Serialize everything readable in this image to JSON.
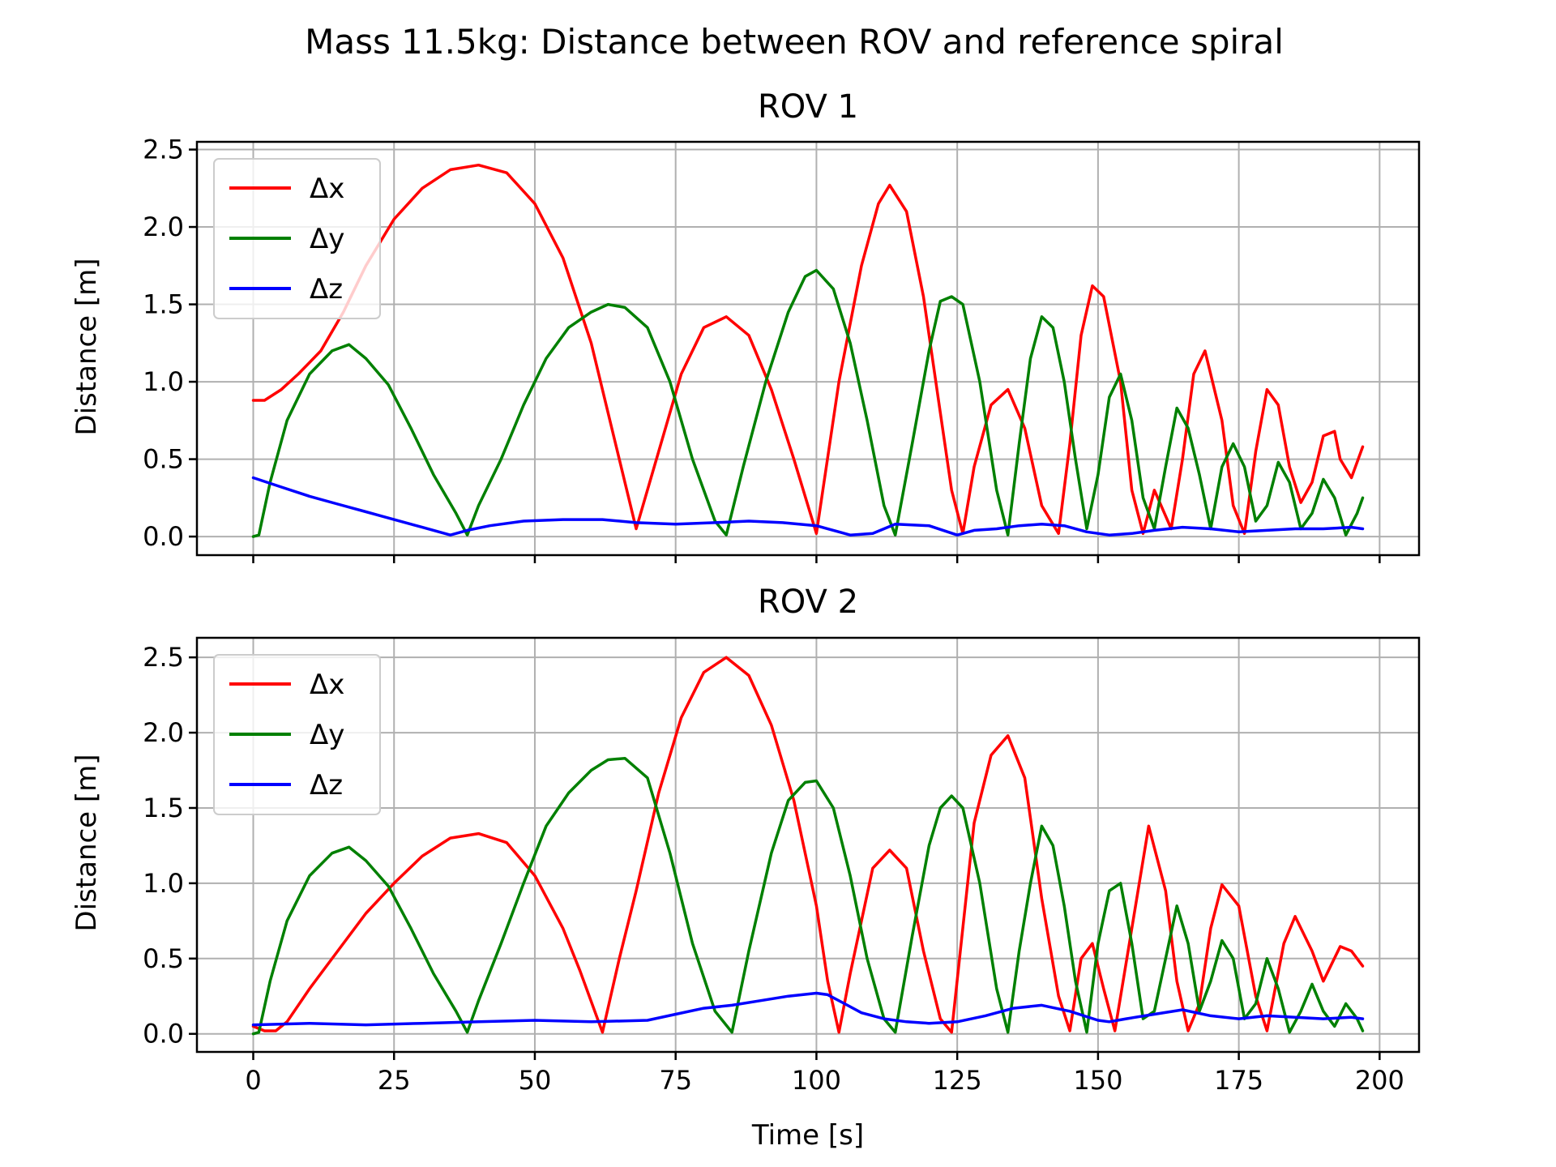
{
  "suptitle": "Mass 11.5kg: Distance between ROV and reference spiral",
  "chart_data": [
    {
      "type": "line",
      "title": "ROV 1",
      "xlabel": "",
      "ylabel": "Distance [m]",
      "xlim": [
        -10,
        207
      ],
      "ylim": [
        -0.12,
        2.55
      ],
      "xticks": [
        0,
        25,
        50,
        75,
        100,
        125,
        150,
        175,
        200
      ],
      "xticklabels_visible": false,
      "yticks": [
        0.0,
        0.5,
        1.0,
        1.5,
        2.0,
        2.5
      ],
      "ytick_labels": [
        "0.0",
        "0.5",
        "1.0",
        "1.5",
        "2.0",
        "2.5"
      ],
      "grid": true,
      "legend": "top-left",
      "series": [
        {
          "name": "Δx",
          "color": "#ff0000",
          "x": [
            0,
            2,
            5,
            8,
            12,
            16,
            20,
            25,
            30,
            35,
            40,
            45,
            50,
            55,
            60,
            64,
            68,
            72,
            76,
            80,
            84,
            88,
            92,
            96,
            100,
            104,
            108,
            111,
            113,
            116,
            119,
            122,
            124,
            126,
            128,
            131,
            134,
            137,
            140,
            143,
            145,
            147,
            149,
            151,
            154,
            156,
            158,
            160,
            163,
            165,
            167,
            169,
            172,
            174,
            176,
            178,
            180,
            182,
            184,
            186,
            188,
            190,
            192,
            193,
            195,
            197
          ],
          "y": [
            0.88,
            0.88,
            0.95,
            1.05,
            1.2,
            1.45,
            1.75,
            2.05,
            2.25,
            2.37,
            2.4,
            2.35,
            2.15,
            1.8,
            1.25,
            0.65,
            0.05,
            0.55,
            1.05,
            1.35,
            1.42,
            1.3,
            0.95,
            0.5,
            0.02,
            1.0,
            1.75,
            2.15,
            2.27,
            2.1,
            1.55,
            0.8,
            0.3,
            0.02,
            0.45,
            0.85,
            0.95,
            0.7,
            0.2,
            0.02,
            0.6,
            1.3,
            1.62,
            1.55,
            1.0,
            0.3,
            0.02,
            0.3,
            0.05,
            0.5,
            1.05,
            1.2,
            0.75,
            0.2,
            0.02,
            0.55,
            0.95,
            0.85,
            0.45,
            0.22,
            0.35,
            0.65,
            0.68,
            0.5,
            0.38,
            0.58
          ]
        },
        {
          "name": "Δy",
          "color": "#008000",
          "x": [
            0,
            1,
            3,
            6,
            10,
            14,
            17,
            20,
            24,
            28,
            32,
            36,
            38,
            40,
            44,
            48,
            52,
            56,
            60,
            63,
            66,
            70,
            74,
            78,
            82,
            84,
            87,
            91,
            95,
            98,
            100,
            103,
            106,
            109,
            112,
            114,
            117,
            120,
            122,
            124,
            126,
            129,
            132,
            134,
            136,
            138,
            140,
            142,
            144,
            146,
            148,
            150,
            152,
            154,
            156,
            158,
            160,
            162,
            164,
            166,
            168,
            170,
            172,
            174,
            176,
            178,
            180,
            182,
            184,
            186,
            188,
            190,
            192,
            194,
            196,
            197
          ],
          "y": [
            0.0,
            0.01,
            0.35,
            0.75,
            1.05,
            1.2,
            1.24,
            1.15,
            0.98,
            0.7,
            0.4,
            0.15,
            0.01,
            0.2,
            0.5,
            0.85,
            1.15,
            1.35,
            1.45,
            1.5,
            1.48,
            1.35,
            1.0,
            0.5,
            0.1,
            0.01,
            0.45,
            1.0,
            1.45,
            1.68,
            1.72,
            1.6,
            1.25,
            0.75,
            0.2,
            0.01,
            0.6,
            1.2,
            1.52,
            1.55,
            1.5,
            1.0,
            0.3,
            0.01,
            0.6,
            1.15,
            1.42,
            1.35,
            1.0,
            0.5,
            0.05,
            0.4,
            0.9,
            1.05,
            0.75,
            0.25,
            0.05,
            0.45,
            0.83,
            0.7,
            0.4,
            0.05,
            0.45,
            0.6,
            0.45,
            0.1,
            0.2,
            0.48,
            0.35,
            0.05,
            0.15,
            0.37,
            0.25,
            0.01,
            0.15,
            0.25
          ]
        },
        {
          "name": "Δz",
          "color": "#0000ff",
          "x": [
            0,
            5,
            10,
            15,
            20,
            25,
            30,
            35,
            38,
            42,
            48,
            55,
            62,
            68,
            75,
            82,
            88,
            94,
            100,
            104,
            106,
            110,
            114,
            120,
            125,
            128,
            132,
            136,
            140,
            144,
            148,
            152,
            156,
            160,
            165,
            170,
            175,
            180,
            185,
            190,
            195,
            197
          ],
          "y": [
            0.38,
            0.32,
            0.26,
            0.21,
            0.16,
            0.11,
            0.06,
            0.01,
            0.04,
            0.07,
            0.1,
            0.11,
            0.11,
            0.09,
            0.08,
            0.09,
            0.1,
            0.09,
            0.07,
            0.03,
            0.01,
            0.02,
            0.08,
            0.07,
            0.01,
            0.04,
            0.05,
            0.07,
            0.08,
            0.07,
            0.03,
            0.01,
            0.02,
            0.04,
            0.06,
            0.05,
            0.03,
            0.04,
            0.05,
            0.05,
            0.06,
            0.05
          ]
        }
      ]
    },
    {
      "type": "line",
      "title": "ROV 2",
      "xlabel": "Time [s]",
      "ylabel": "Distance [m]",
      "xlim": [
        -10,
        207
      ],
      "ylim": [
        -0.12,
        2.63
      ],
      "xticks": [
        0,
        25,
        50,
        75,
        100,
        125,
        150,
        175,
        200
      ],
      "xtick_labels": [
        "0",
        "25",
        "50",
        "75",
        "100",
        "125",
        "150",
        "175",
        "200"
      ],
      "xticklabels_visible": true,
      "yticks": [
        0.0,
        0.5,
        1.0,
        1.5,
        2.0,
        2.5
      ],
      "ytick_labels": [
        "0.0",
        "0.5",
        "1.0",
        "1.5",
        "2.0",
        "2.5"
      ],
      "grid": true,
      "legend": "top-left",
      "series": [
        {
          "name": "Δx",
          "color": "#ff0000",
          "x": [
            0,
            2,
            4,
            6,
            10,
            15,
            20,
            25,
            30,
            35,
            40,
            45,
            50,
            55,
            58,
            62,
            65,
            68,
            72,
            76,
            80,
            84,
            88,
            92,
            96,
            100,
            102,
            104,
            106,
            110,
            113,
            116,
            119,
            122,
            124,
            128,
            131,
            134,
            137,
            140,
            143,
            145,
            147,
            149,
            151,
            153,
            156,
            159,
            162,
            164,
            166,
            168,
            170,
            172,
            175,
            178,
            180,
            183,
            185,
            188,
            190,
            193,
            195,
            197
          ],
          "y": [
            0.05,
            0.02,
            0.02,
            0.08,
            0.3,
            0.55,
            0.8,
            1.0,
            1.18,
            1.3,
            1.33,
            1.27,
            1.05,
            0.7,
            0.42,
            0.01,
            0.5,
            0.95,
            1.6,
            2.1,
            2.4,
            2.5,
            2.38,
            2.05,
            1.55,
            0.85,
            0.35,
            0.01,
            0.4,
            1.1,
            1.22,
            1.1,
            0.55,
            0.1,
            0.01,
            1.4,
            1.85,
            1.98,
            1.7,
            0.9,
            0.25,
            0.02,
            0.5,
            0.6,
            0.3,
            0.02,
            0.7,
            1.38,
            0.95,
            0.35,
            0.02,
            0.2,
            0.7,
            0.99,
            0.85,
            0.25,
            0.02,
            0.6,
            0.78,
            0.55,
            0.35,
            0.58,
            0.55,
            0.45
          ]
        },
        {
          "name": "Δy",
          "color": "#008000",
          "x": [
            0,
            1,
            3,
            6,
            10,
            14,
            17,
            20,
            24,
            28,
            32,
            36,
            38,
            40,
            44,
            48,
            52,
            56,
            60,
            63,
            66,
            70,
            74,
            78,
            82,
            85,
            88,
            92,
            95,
            98,
            100,
            103,
            106,
            109,
            112,
            114,
            117,
            120,
            122,
            124,
            126,
            129,
            132,
            134,
            136,
            138,
            140,
            142,
            144,
            146,
            148,
            150,
            152,
            154,
            156,
            158,
            160,
            162,
            164,
            166,
            168,
            170,
            172,
            174,
            176,
            178,
            180,
            182,
            184,
            186,
            188,
            190,
            192,
            194,
            196,
            197
          ],
          "y": [
            0.0,
            0.01,
            0.35,
            0.75,
            1.05,
            1.2,
            1.24,
            1.15,
            0.98,
            0.7,
            0.4,
            0.15,
            0.01,
            0.22,
            0.6,
            1.0,
            1.38,
            1.6,
            1.75,
            1.82,
            1.83,
            1.7,
            1.2,
            0.6,
            0.15,
            0.01,
            0.55,
            1.2,
            1.55,
            1.67,
            1.68,
            1.5,
            1.05,
            0.5,
            0.1,
            0.01,
            0.65,
            1.25,
            1.5,
            1.58,
            1.5,
            1.0,
            0.3,
            0.01,
            0.55,
            1.0,
            1.38,
            1.25,
            0.85,
            0.35,
            0.01,
            0.6,
            0.95,
            1.0,
            0.6,
            0.1,
            0.15,
            0.5,
            0.85,
            0.6,
            0.15,
            0.35,
            0.62,
            0.5,
            0.1,
            0.2,
            0.5,
            0.3,
            0.01,
            0.15,
            0.33,
            0.15,
            0.05,
            0.2,
            0.1,
            0.02
          ]
        },
        {
          "name": "Δz",
          "color": "#0000ff",
          "x": [
            0,
            10,
            20,
            30,
            40,
            50,
            60,
            70,
            75,
            80,
            85,
            90,
            95,
            100,
            102,
            105,
            108,
            112,
            116,
            120,
            125,
            130,
            135,
            140,
            145,
            150,
            152,
            155,
            160,
            165,
            170,
            175,
            180,
            185,
            190,
            195,
            197
          ],
          "y": [
            0.06,
            0.07,
            0.06,
            0.07,
            0.08,
            0.09,
            0.08,
            0.09,
            0.13,
            0.17,
            0.19,
            0.22,
            0.25,
            0.27,
            0.26,
            0.2,
            0.14,
            0.1,
            0.08,
            0.07,
            0.08,
            0.12,
            0.17,
            0.19,
            0.15,
            0.09,
            0.08,
            0.1,
            0.13,
            0.16,
            0.12,
            0.1,
            0.12,
            0.11,
            0.1,
            0.11,
            0.1
          ]
        }
      ]
    }
  ]
}
